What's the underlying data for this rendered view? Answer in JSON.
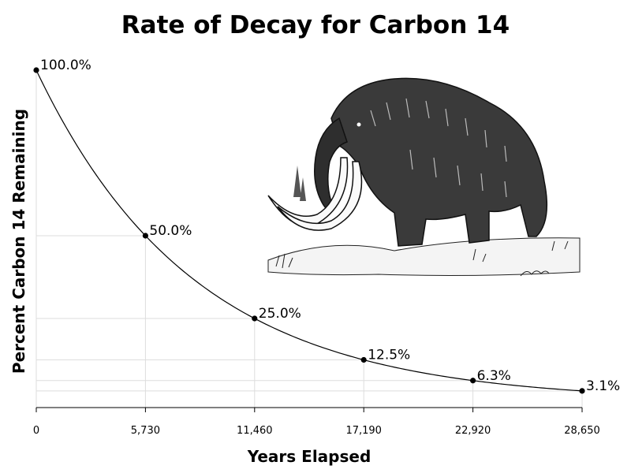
{
  "chart_data": {
    "type": "line",
    "title": "Rate of Decay for Carbon 14",
    "xlabel": "Years Elapsed",
    "ylabel": "Percent Carbon 14 Remaining",
    "x_ticks": [
      0,
      5730,
      11460,
      17190,
      22920,
      28650
    ],
    "x_tick_labels": [
      "0",
      "5,730",
      "11,460",
      "17,190",
      "22,920",
      "28,650"
    ],
    "xlim": [
      0,
      28650
    ],
    "ylim": [
      0,
      100
    ],
    "grid": true,
    "half_life_years": 5730,
    "points": [
      {
        "x": 0,
        "y": 100.0,
        "label": "100.0%"
      },
      {
        "x": 5730,
        "y": 50.0,
        "label": "50.0%"
      },
      {
        "x": 11460,
        "y": 25.0,
        "label": "25.0%"
      },
      {
        "x": 17190,
        "y": 12.5,
        "label": "12.5%"
      },
      {
        "x": 22920,
        "y": 6.25,
        "label": "6.3%"
      },
      {
        "x": 28650,
        "y": 3.125,
        "label": "3.1%"
      }
    ],
    "line_color": "#000000",
    "grid_color": "#dddddd"
  },
  "illustration": {
    "icon": "woolly-mammoth-icon"
  }
}
